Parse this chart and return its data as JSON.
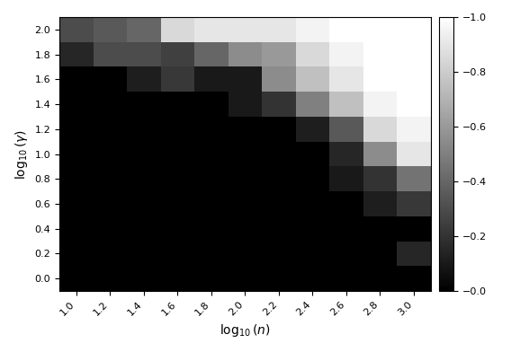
{
  "x_labels": [
    "1.0",
    "1.2",
    "1.4",
    "1.6",
    "1.8",
    "2.0",
    "2.2",
    "2.4",
    "2.6",
    "2.8",
    "3.0"
  ],
  "y_labels": [
    "0.0",
    "0.2",
    "0.4",
    "0.6",
    "0.8",
    "1.0",
    "1.2",
    "1.4",
    "1.6",
    "1.8",
    "2.0"
  ],
  "x_values": [
    1.0,
    1.2,
    1.4,
    1.6,
    1.8,
    2.0,
    2.2,
    2.4,
    2.6,
    2.8,
    3.0
  ],
  "y_values": [
    0.0,
    0.2,
    0.4,
    0.6,
    0.8,
    1.0,
    1.2,
    1.4,
    1.6,
    1.8,
    2.0
  ],
  "xlabel": "$\\log_{10}(n)$",
  "ylabel": "$\\log_{10}(\\gamma)$",
  "colorbar_ticks": [
    0.0,
    0.2,
    0.4,
    0.6,
    0.8,
    1.0
  ],
  "data": [
    [
      0.0,
      0.0,
      0.0,
      0.0,
      0.0,
      0.0,
      0.0,
      0.0,
      0.0,
      0.0,
      0.0
    ],
    [
      0.0,
      0.0,
      0.0,
      0.0,
      0.0,
      0.0,
      0.0,
      0.0,
      0.0,
      0.0,
      0.15
    ],
    [
      0.0,
      0.0,
      0.0,
      0.0,
      0.0,
      0.0,
      0.0,
      0.0,
      0.0,
      0.0,
      0.0
    ],
    [
      0.0,
      0.0,
      0.0,
      0.0,
      0.0,
      0.0,
      0.0,
      0.0,
      0.0,
      0.12,
      0.22
    ],
    [
      0.0,
      0.0,
      0.0,
      0.0,
      0.0,
      0.0,
      0.0,
      0.0,
      0.1,
      0.2,
      0.45
    ],
    [
      0.0,
      0.0,
      0.0,
      0.0,
      0.0,
      0.0,
      0.0,
      0.0,
      0.15,
      0.55,
      0.9
    ],
    [
      0.0,
      0.0,
      0.0,
      0.0,
      0.0,
      0.0,
      0.0,
      0.12,
      0.35,
      0.85,
      0.95
    ],
    [
      0.0,
      0.0,
      0.0,
      0.0,
      0.0,
      0.1,
      0.2,
      0.5,
      0.75,
      0.95,
      1.0
    ],
    [
      0.0,
      0.0,
      0.12,
      0.22,
      0.1,
      0.1,
      0.55,
      0.75,
      0.9,
      1.0,
      1.0
    ],
    [
      0.15,
      0.3,
      0.3,
      0.25,
      0.4,
      0.55,
      0.6,
      0.85,
      0.95,
      1.0,
      1.0
    ],
    [
      0.3,
      0.35,
      0.4,
      0.85,
      0.9,
      0.9,
      0.9,
      0.95,
      1.0,
      1.0,
      1.0
    ]
  ],
  "figsize": [
    5.78,
    3.92
  ],
  "dpi": 100
}
